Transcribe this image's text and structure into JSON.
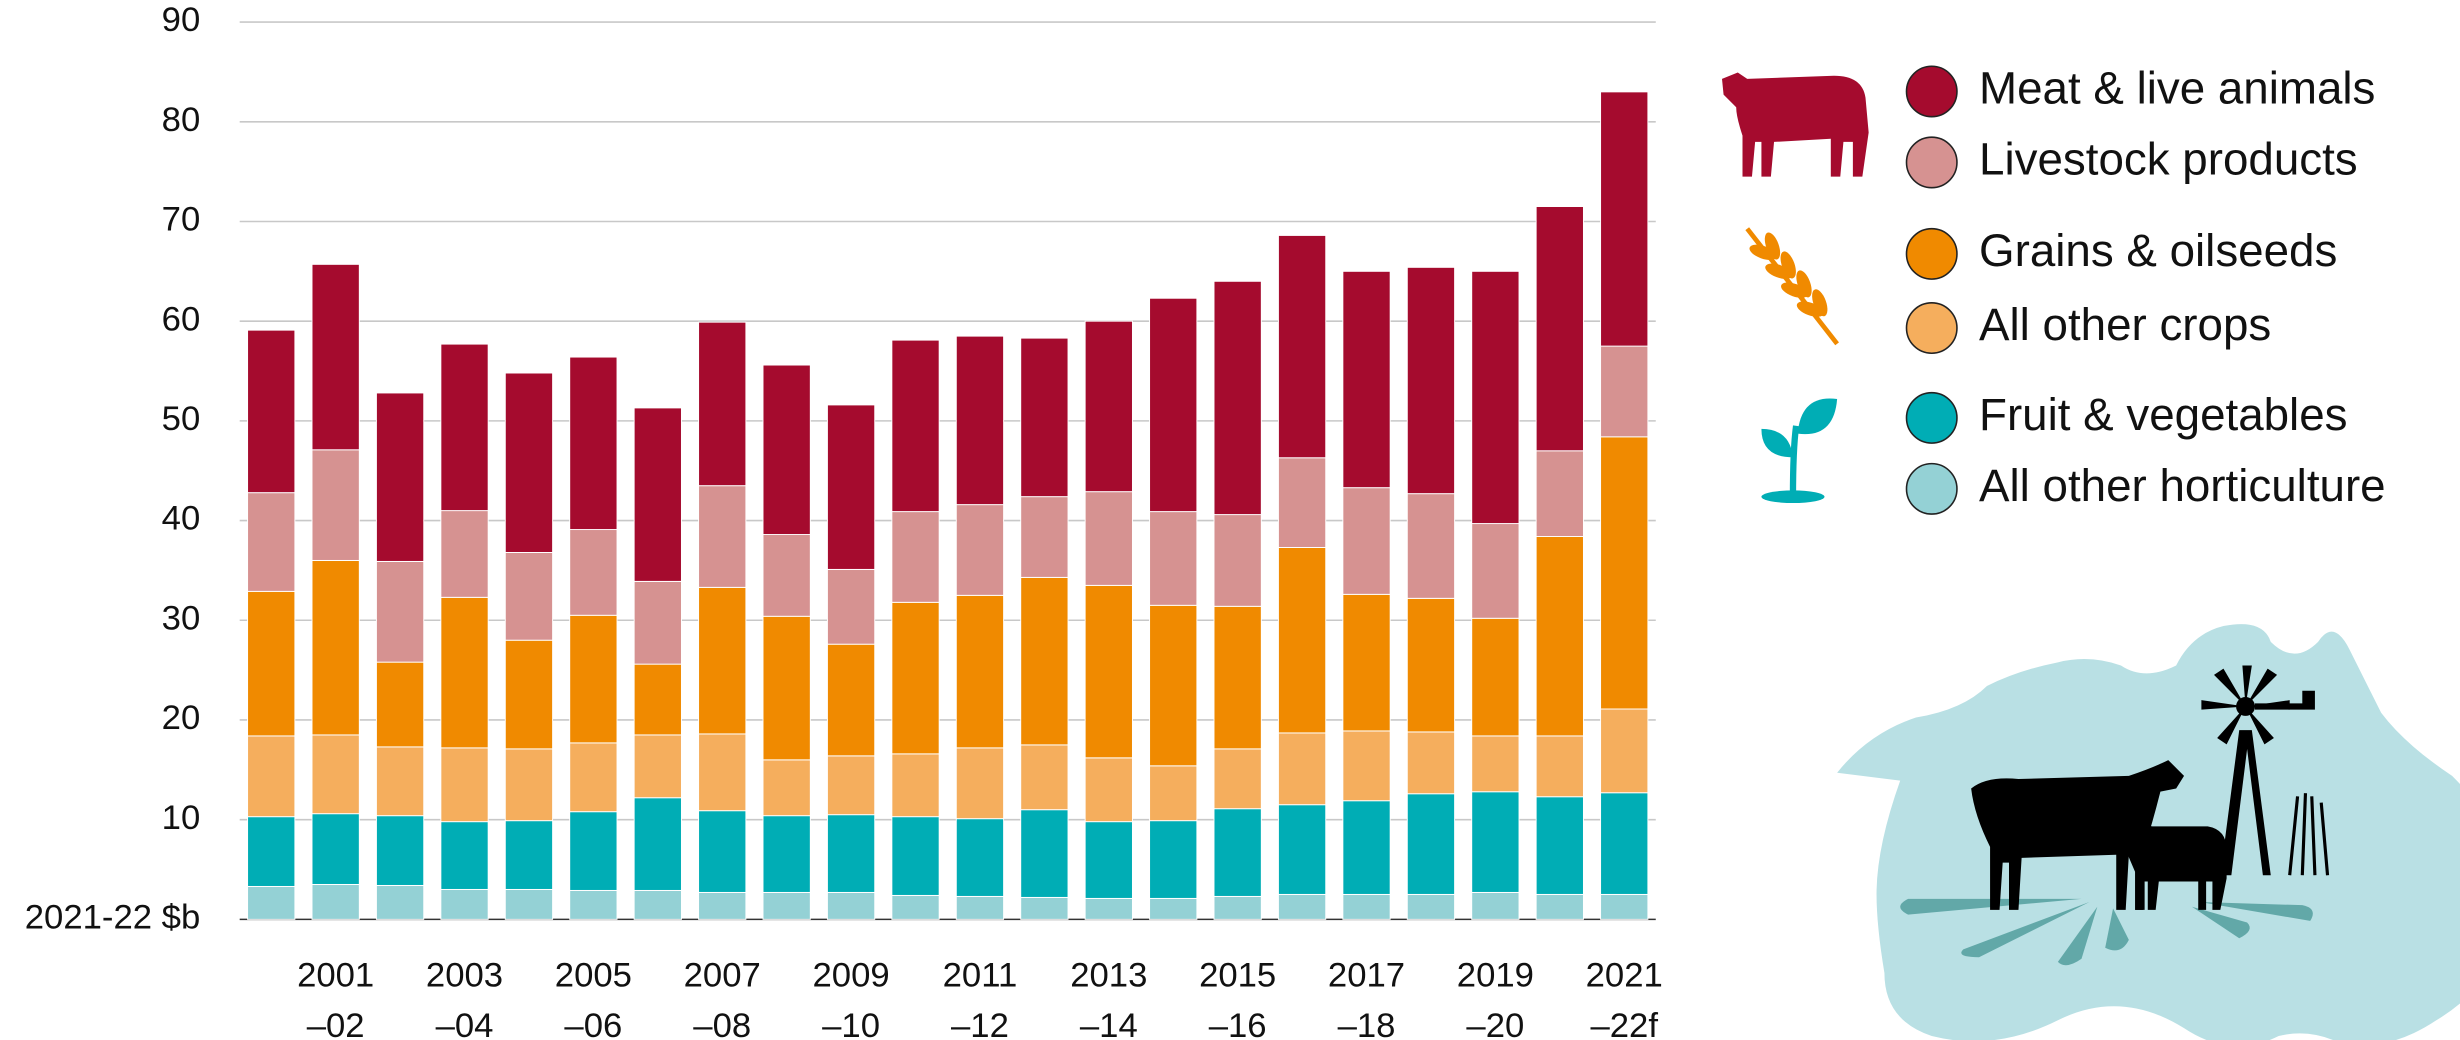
{
  "chart_data": {
    "type": "stacked_bar",
    "categories": [
      null,
      "2001\n–02",
      null,
      "2003\n–04",
      null,
      "2005\n–06",
      null,
      "2007\n–08",
      null,
      "2009\n–10",
      null,
      "2011\n–12",
      null,
      "2013\n–14",
      null,
      "2015\n–16",
      null,
      "2017\n–18",
      null,
      "2019\n–20",
      null,
      "2021\n–22f"
    ],
    "series": [
      {
        "name": "Meat & live animals",
        "color": "#a50b2e",
        "values": [
          16.3,
          18.6,
          16.9,
          16.7,
          18.0,
          17.3,
          17.4,
          16.4,
          17.0,
          16.5,
          17.2,
          16.9,
          15.9,
          17.1,
          21.4,
          23.4,
          22.3,
          21.7,
          22.7,
          25.3,
          24.5,
          25.5
        ]
      },
      {
        "name": "Livestock products",
        "color": "#d69291",
        "values": [
          9.9,
          11.1,
          10.1,
          8.7,
          8.8,
          8.6,
          8.3,
          10.2,
          8.2,
          7.5,
          9.1,
          9.1,
          8.1,
          9.4,
          9.4,
          9.2,
          9.0,
          10.7,
          10.5,
          9.5,
          8.6,
          9.1
        ]
      },
      {
        "name": "Grains & oilseeds",
        "color": "#f08a00",
        "values": [
          14.5,
          17.5,
          8.5,
          15.1,
          10.9,
          12.8,
          7.1,
          14.7,
          14.4,
          11.2,
          15.2,
          15.3,
          16.8,
          17.3,
          16.1,
          14.3,
          18.6,
          13.7,
          13.4,
          11.8,
          20.0,
          27.3
        ]
      },
      {
        "name": "All other crops",
        "color": "#f5ae5d",
        "values": [
          8.1,
          7.9,
          6.9,
          7.4,
          7.2,
          6.9,
          6.3,
          7.7,
          5.6,
          5.9,
          6.3,
          7.1,
          6.5,
          6.4,
          5.5,
          6.0,
          7.2,
          7.0,
          6.2,
          5.6,
          6.1,
          8.4
        ]
      },
      {
        "name": "Fruit & vegetables",
        "color": "#00adb5",
        "values": [
          7.0,
          7.1,
          7.0,
          6.8,
          6.9,
          7.9,
          9.3,
          8.2,
          7.7,
          7.8,
          7.9,
          7.8,
          8.8,
          7.7,
          7.8,
          8.8,
          9.0,
          9.4,
          10.1,
          10.1,
          9.8,
          10.2
        ]
      },
      {
        "name": "All other horticulture",
        "color": "#94d1d5",
        "values": [
          3.3,
          3.5,
          3.4,
          3.0,
          3.0,
          2.9,
          2.9,
          2.7,
          2.7,
          2.7,
          2.4,
          2.3,
          2.2,
          2.1,
          2.1,
          2.3,
          2.5,
          2.5,
          2.5,
          2.7,
          2.5,
          2.5
        ]
      }
    ],
    "ylim": [
      0,
      90
    ],
    "yticks": [
      {
        "value": 0,
        "label": "2021-22 $b"
      },
      10,
      20,
      30,
      40,
      50,
      60,
      70,
      80,
      90
    ],
    "grid": true
  }
}
